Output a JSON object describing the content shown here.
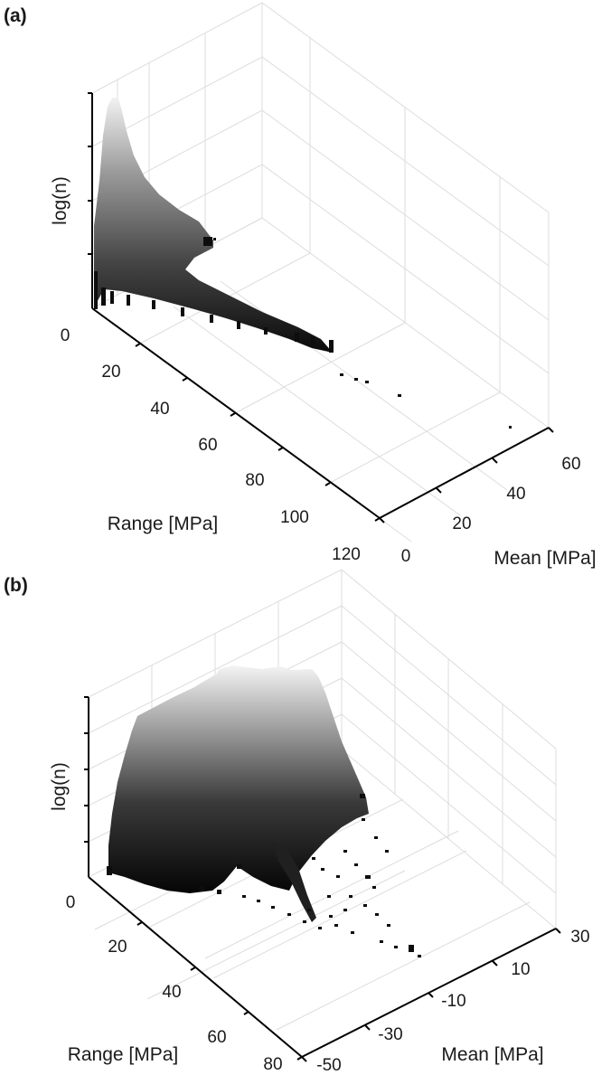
{
  "chart_data": [
    {
      "type": "bar3d",
      "panel_label": "(a)",
      "zlabel": "log(n)",
      "xlabel": "Range [MPa]",
      "ylabel": "Mean [MPa]",
      "x_ticks": [
        "0",
        "20",
        "40",
        "60",
        "80",
        "100",
        "120"
      ],
      "y_ticks": [
        "0",
        "20",
        "40",
        "60"
      ],
      "xlim": [
        0,
        120
      ],
      "ylim": [
        0,
        60
      ],
      "grid": true,
      "colormap": "gray",
      "ridge_profile": [
        {
          "range": 0,
          "log_n": 0.95
        },
        {
          "range": 4,
          "log_n": 0.85
        },
        {
          "range": 8,
          "log_n": 0.72
        },
        {
          "range": 14,
          "log_n": 0.58
        },
        {
          "range": 20,
          "log_n": 0.46
        },
        {
          "range": 30,
          "log_n": 0.33
        },
        {
          "range": 40,
          "log_n": 0.24
        },
        {
          "range": 55,
          "log_n": 0.15
        },
        {
          "range": 70,
          "log_n": 0.08
        },
        {
          "range": 85,
          "log_n": 0.04
        },
        {
          "range": 100,
          "log_n": 0.01
        }
      ]
    },
    {
      "type": "bar3d",
      "panel_label": "(b)",
      "zlabel": "log(n)",
      "xlabel": "Range [MPa]",
      "ylabel": "Mean [MPa]",
      "x_ticks": [
        "0",
        "20",
        "40",
        "60",
        "80"
      ],
      "y_ticks": [
        "-50",
        "-30",
        "-10",
        "10",
        "30"
      ],
      "xlim": [
        0,
        80
      ],
      "ylim": [
        -50,
        30
      ],
      "grid": true,
      "colormap": "gray"
    }
  ]
}
